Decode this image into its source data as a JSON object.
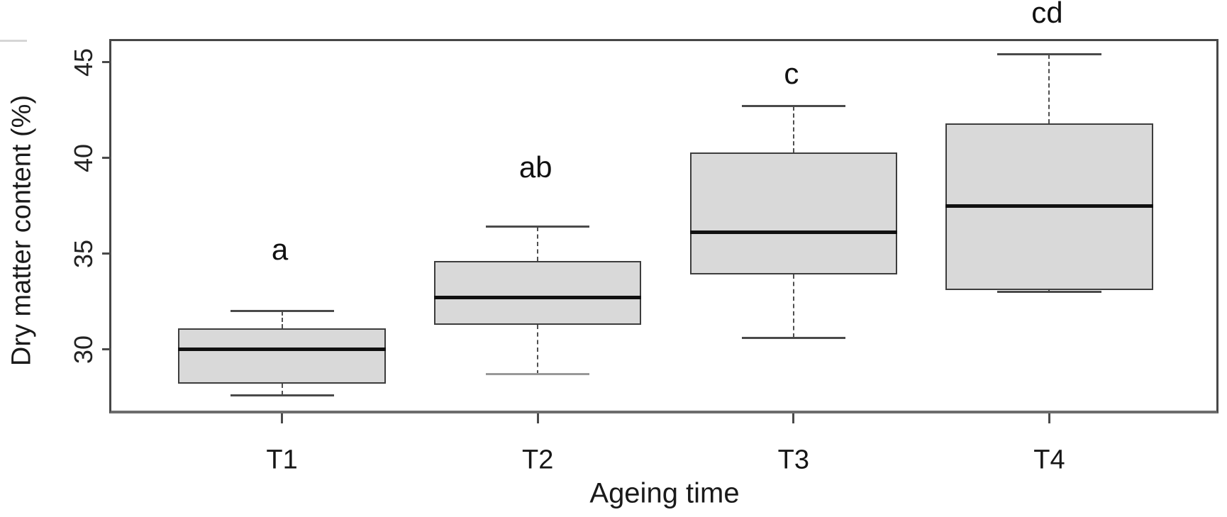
{
  "chart_data": {
    "type": "box",
    "title": "",
    "xlabel": "Ageing time",
    "ylabel": "Dry matter content (%)",
    "categories": [
      "T1",
      "T2",
      "T3",
      "T4"
    ],
    "yticks": [
      30,
      35,
      40,
      45
    ],
    "ylim": [
      26.8,
      46.1
    ],
    "grid": false,
    "legend": false,
    "series": [
      {
        "name": "T1",
        "whisker_low": 27.6,
        "q1": 28.2,
        "median": 30.0,
        "q3": 31.1,
        "whisker_high": 32.0,
        "sig_label": "a",
        "sig_label_value": 35.2
      },
      {
        "name": "T2",
        "whisker_low": 28.7,
        "q1": 31.3,
        "median": 32.7,
        "q3": 34.6,
        "whisker_high": 36.4,
        "sig_label": "ab",
        "sig_label_value": 39.5,
        "lower_cap_color": "#999999"
      },
      {
        "name": "T3",
        "whisker_low": 30.6,
        "q1": 33.9,
        "median": 36.1,
        "q3": 40.3,
        "whisker_high": 42.7,
        "sig_label": "c",
        "sig_label_value": 44.4
      },
      {
        "name": "T4",
        "whisker_low": 33.0,
        "q1": 33.1,
        "median": 37.5,
        "q3": 41.8,
        "whisker_high": 45.4,
        "sig_label": "cd",
        "sig_label_value": 47.6
      }
    ],
    "colors": {
      "box_fill": "#d9d9d9",
      "box_border": "#3d3d3d",
      "median": "#111111",
      "whisker": "#4f4f4f",
      "cap_default": "#4a4a4a",
      "axis_border": "#474747",
      "axis_bottom": "#6d6d6d",
      "text": "#1a1a1a",
      "background": "#ffffff"
    }
  }
}
